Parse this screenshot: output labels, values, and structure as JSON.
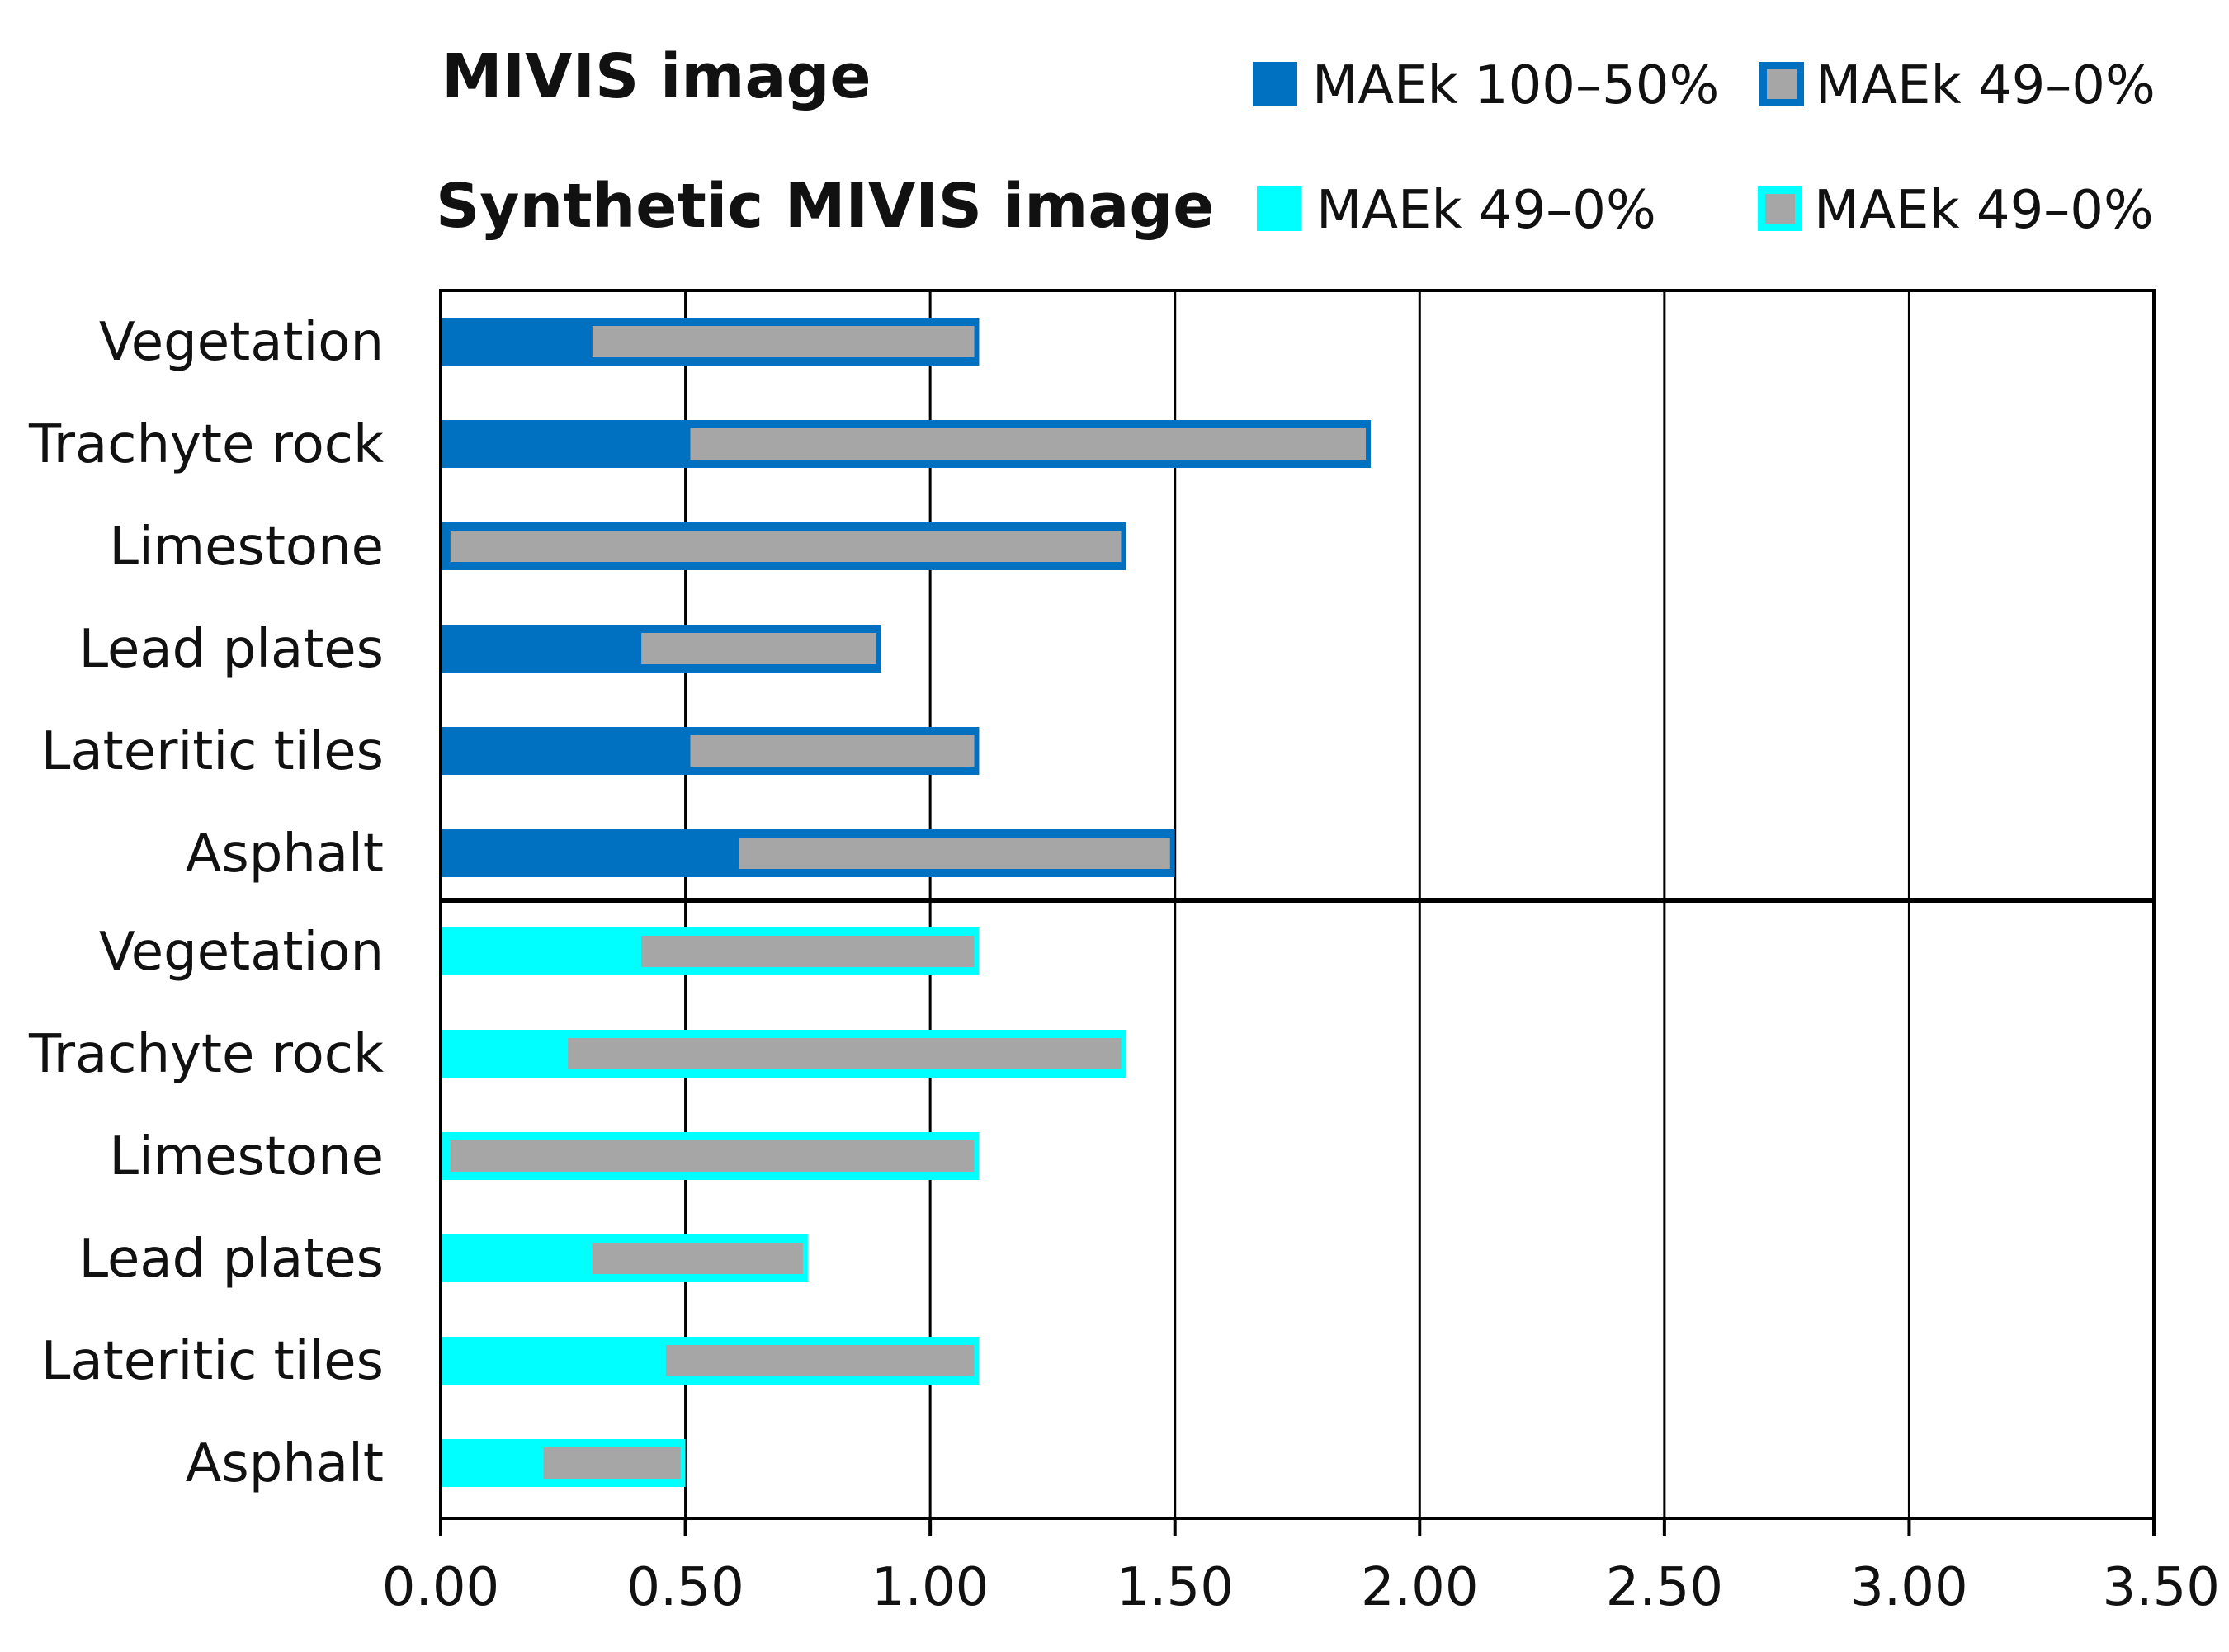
{
  "chart_data": {
    "type": "bar",
    "orientation": "horizontal",
    "stacking": "overlaid range bars",
    "xlim": [
      0,
      3.5
    ],
    "x_ticks": [
      "0.00",
      "0.50",
      "1.00",
      "1.50",
      "2.00",
      "2.50",
      "3.00",
      "3.50"
    ],
    "x_tick_values": [
      0,
      0.5,
      1.0,
      1.5,
      2.0,
      2.5,
      3.0,
      3.5
    ],
    "grid": true,
    "colors": {
      "mivis": "#0070c0",
      "synthetic": "#00ffff",
      "inner": "#a6a6a6"
    },
    "groups": [
      {
        "title": "MIVIS image",
        "legend": [
          "MAEk 100–50%",
          "MAEk 49–0%"
        ],
        "categories": [
          "Vegetation",
          "Trachyte rock",
          "Limestone",
          "Lead plates",
          "Lateritic tiles",
          "Asphalt"
        ],
        "series": [
          {
            "name": "MAEk 100–50%",
            "values": [
              1.1,
              1.9,
              1.4,
              0.9,
              1.1,
              1.5
            ]
          },
          {
            "name": "MAEk 49–0%",
            "start": [
              0.31,
              0.51,
              0.02,
              0.41,
              0.51,
              0.61
            ],
            "end": [
              1.09,
              1.89,
              1.39,
              0.89,
              1.09,
              1.49
            ]
          }
        ]
      },
      {
        "title": "Synthetic MIVIS image",
        "legend": [
          "MAEk 49–0%",
          "MAEk 49–0%"
        ],
        "categories": [
          "Vegetation",
          "Trachyte rock",
          "Limestone",
          "Lead plates",
          "Lateritic tiles",
          "Asphalt"
        ],
        "series": [
          {
            "name": "MAEk 49–0%",
            "values": [
              1.1,
              1.4,
              1.1,
              0.75,
              1.1,
              0.5
            ]
          },
          {
            "name": "MAEk 49–0%",
            "start": [
              0.41,
              0.26,
              0.02,
              0.31,
              0.46,
              0.21
            ],
            "end": [
              1.09,
              1.39,
              1.09,
              0.74,
              1.09,
              0.49
            ]
          }
        ]
      }
    ]
  }
}
